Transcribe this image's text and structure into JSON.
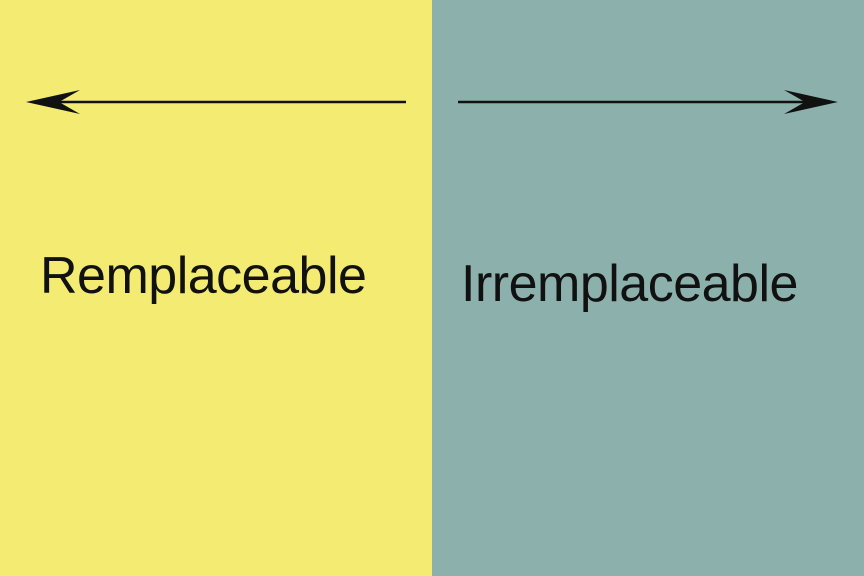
{
  "left_panel": {
    "label": "Remplaceable",
    "background": "#F3EB72",
    "arrow_direction": "left"
  },
  "right_panel": {
    "label": "Irremplaceable",
    "background": "#8CB1AC",
    "arrow_direction": "right"
  },
  "colors": {
    "text": "#111111",
    "arrow": "#111111"
  }
}
